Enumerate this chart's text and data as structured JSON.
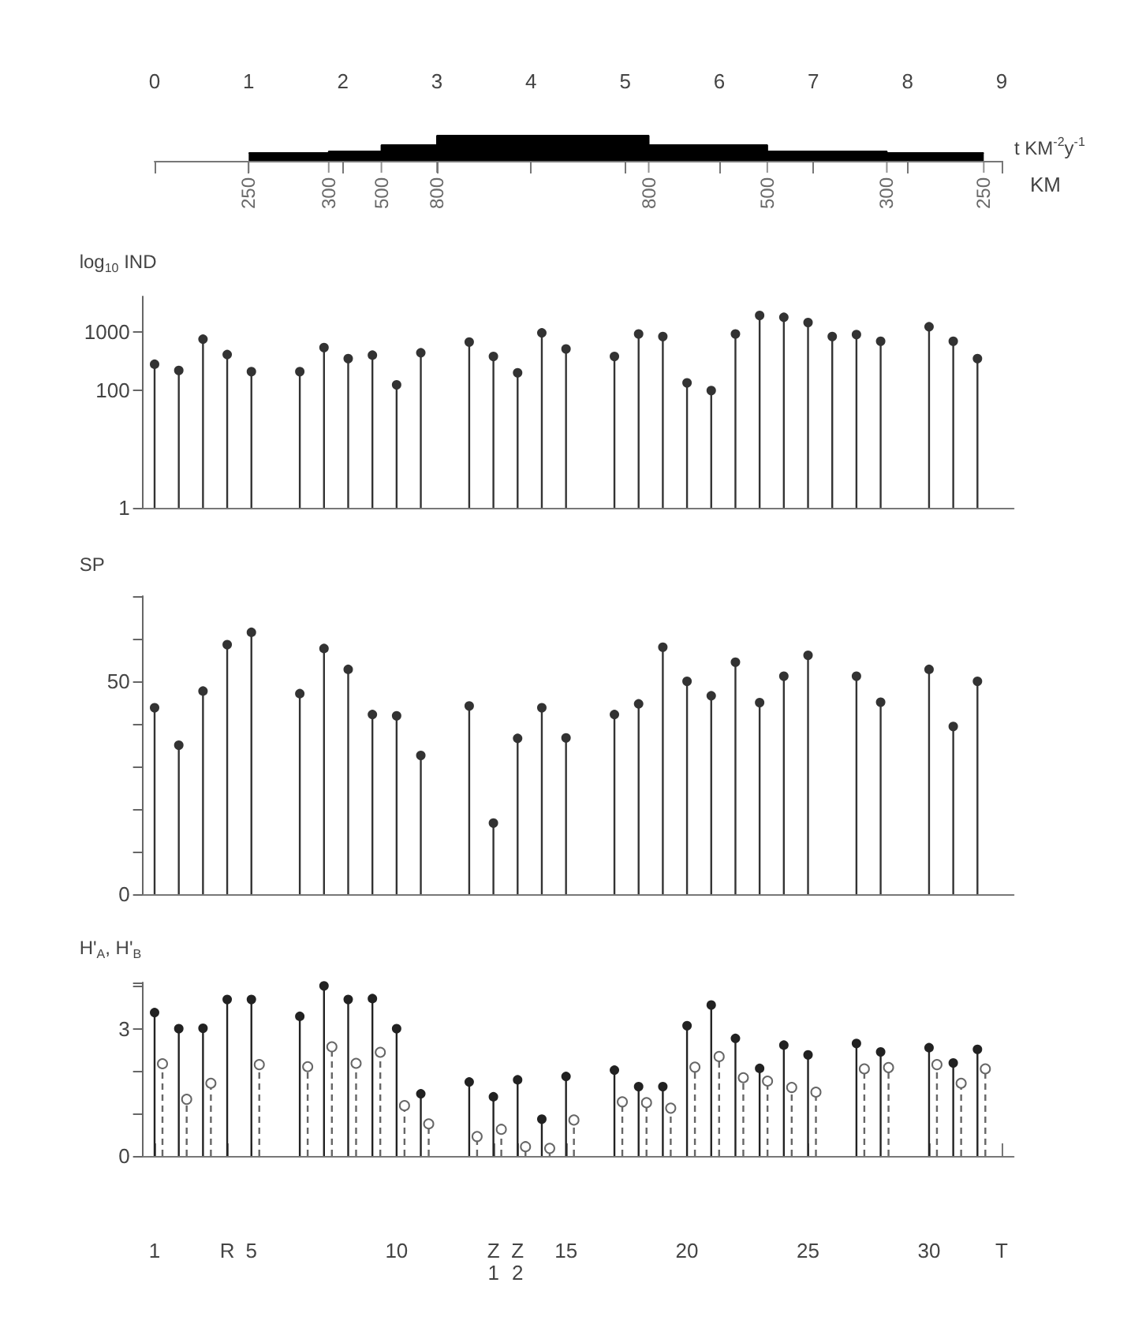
{
  "chart_data": [
    {
      "type": "area",
      "xlabel": "KM",
      "ylabel": "t KM$^{-2}$y$^{-1}$",
      "x": [
        1.0,
        1.85,
        1.85,
        2.41,
        2.41,
        3.0,
        3.0,
        5.25,
        5.25,
        6.51,
        6.51,
        7.78,
        7.78,
        8.81
      ],
      "values": [
        250,
        250,
        300,
        300,
        500,
        500,
        800,
        800,
        500,
        500,
        300,
        300,
        250,
        250
      ],
      "value_labels": [
        "250",
        null,
        "300",
        null,
        "500",
        null,
        "800",
        "800",
        null,
        "500",
        null,
        "300",
        null,
        "250"
      ],
      "color": "#000000",
      "xlim": [
        0,
        9
      ],
      "xticks": [
        0,
        1,
        2,
        3,
        4,
        5,
        6,
        7,
        8,
        9
      ],
      "tick_labels": "x"
    },
    {
      "type": "lollipop",
      "ylabel": "log$_{10}$ IND",
      "categories": [
        null,
        null,
        null,
        null,
        null,
        null,
        null,
        null,
        null,
        null,
        null,
        null,
        null,
        null,
        null,
        null,
        null,
        null,
        null,
        null,
        null,
        null,
        null,
        null,
        null,
        null,
        null,
        null,
        null,
        null,
        null,
        null,
        null,
        null,
        null,
        null
      ],
      "values": [
        280,
        220,
        750,
        410,
        210,
        null,
        210,
        540,
        350,
        400,
        125,
        440,
        null,
        670,
        380,
        200,
        960,
        510,
        null,
        380,
        920,
        830,
        135,
        100,
        920,
        1900,
        1770,
        1440,
        830,
        900,
        690,
        null,
        1220,
        690,
        350,
        null
      ],
      "color": "#333333",
      "marker": "circle",
      "log": true,
      "ylim": [
        1,
        4000
      ],
      "yticks": [
        1,
        100,
        1000
      ],
      "tick_labels": "y"
    },
    {
      "type": "lollipop",
      "ylabel": "SP",
      "categories": [
        null,
        null,
        null,
        null,
        null,
        null,
        null,
        null,
        null,
        null,
        null,
        null,
        null,
        null,
        null,
        null,
        null,
        null,
        null,
        null,
        null,
        null,
        null,
        null,
        null,
        null,
        null,
        null,
        null,
        null,
        null,
        null,
        null,
        null,
        null,
        null
      ],
      "values": [
        43.8,
        35,
        47.7,
        58.6,
        61.5,
        null,
        47.1,
        57.7,
        52.8,
        42.2,
        41.9,
        32.6,
        null,
        44.2,
        16.7,
        36.6,
        43.8,
        36.7,
        null,
        42.2,
        44.7,
        58,
        50,
        46.6,
        54.5,
        45,
        51.2,
        56.1,
        null,
        51.2,
        45.1,
        null,
        52.8,
        39.4,
        50,
        null
      ],
      "color": "#333333",
      "marker": "circle",
      "ylim": [
        0,
        70
      ],
      "yticks": [
        0,
        {
          "value": 10,
          "label": null
        },
        {
          "value": 20,
          "label": null
        },
        {
          "value": 30,
          "label": null
        },
        {
          "value": 40,
          "label": null
        },
        50,
        {
          "value": 60,
          "label": null
        },
        {
          "value": 70,
          "label": null
        }
      ],
      "tick_labels": "y"
    },
    {
      "type": "lollipop",
      "ylabel": "H'$_{A}$, H'$_{B}$",
      "categories": [
        "1",
        null,
        null,
        "R",
        "5",
        null,
        null,
        null,
        null,
        null,
        "10",
        null,
        null,
        null,
        "Z\n1",
        "Z\n2",
        null,
        "15",
        null,
        null,
        null,
        null,
        "20",
        null,
        null,
        null,
        null,
        "25",
        null,
        null,
        null,
        null,
        "30",
        null,
        null,
        "T"
      ],
      "ylim": [
        0,
        4.1
      ],
      "yticks": [
        0,
        {
          "value": 1,
          "label": null
        },
        {
          "value": 2,
          "label": null
        },
        3
      ],
      "marker": "circle",
      "series": [
        {
          "color": "#222222",
          "line_style": "solid",
          "values": [
            3.39,
            3.01,
            3.02,
            3.7,
            3.7,
            null,
            3.3,
            4.02,
            3.7,
            3.72,
            3.01,
            1.47,
            null,
            1.75,
            1.4,
            1.8,
            0.87,
            1.88,
            null,
            2.03,
            1.64,
            1.64,
            3.08,
            3.57,
            2.78,
            2.07,
            2.62,
            2.39,
            null,
            2.66,
            2.46,
            null,
            2.56,
            2.2,
            2.52,
            null
          ]
        },
        {
          "color": "#666666",
          "line_style": "dashed",
          "values": [
            2.18,
            1.34,
            1.72,
            null,
            2.16,
            null,
            2.11,
            2.58,
            2.19,
            2.45,
            1.19,
            0.76,
            null,
            0.46,
            0.63,
            0.22,
            0.18,
            0.85,
            null,
            1.28,
            1.26,
            1.13,
            2.1,
            2.35,
            1.85,
            1.77,
            1.62,
            1.51,
            null,
            2.06,
            2.09,
            null,
            2.16,
            1.72,
            2.06,
            null
          ]
        }
      ]
    }
  ]
}
